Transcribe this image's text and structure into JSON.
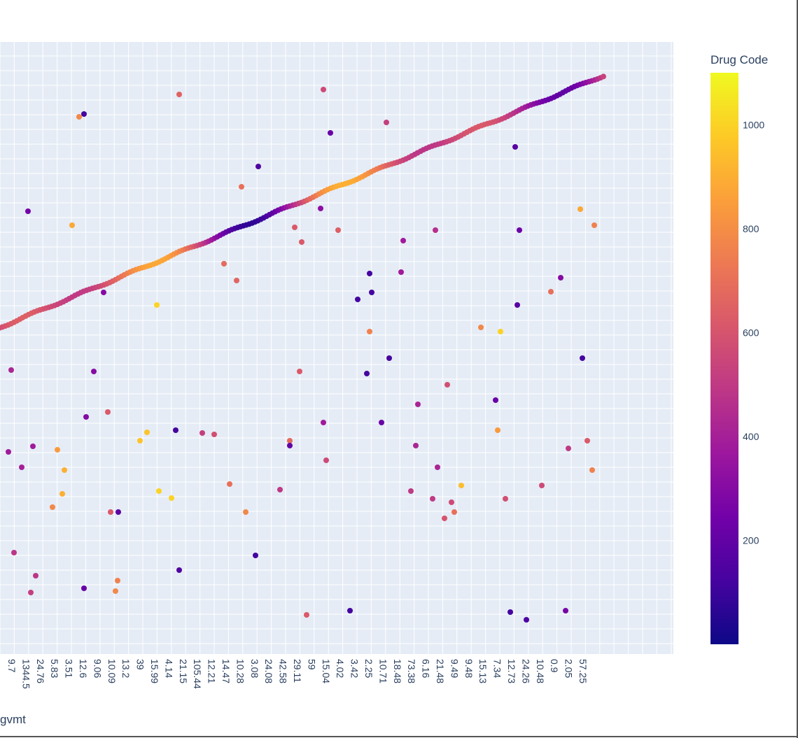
{
  "chart_data": {
    "type": "scatter",
    "title": "",
    "xlabel": "gvmt",
    "ylabel": "",
    "grid": true,
    "x_tick_labels": [
      "9.7",
      "1344.5",
      "24.76",
      "5.83",
      "3.51",
      "12.6",
      "9.06",
      "10.09",
      "13.2",
      "39",
      "15.99",
      "4.14",
      "21.15",
      "105.44",
      "12.21",
      "14.47",
      "10.28",
      "3.08",
      "24.08",
      "42.58",
      "29.11",
      "59",
      "15.04",
      "4.02",
      "3.42",
      "2.25",
      "10.71",
      "18.48",
      "73.38",
      "6.16",
      "21.48",
      "9.49",
      "9.48",
      "15.13",
      "7.34",
      "12.73",
      "24.26",
      "10.48",
      "0.9",
      "2.05",
      "57.25"
    ],
    "colorbar": {
      "title": "Drug Code",
      "range": [
        0,
        1100
      ],
      "ticks": [
        200,
        400,
        600,
        800,
        1000
      ],
      "colorscale": [
        "#0d0887",
        "#46039f",
        "#7201a8",
        "#9c179e",
        "#bd3786",
        "#d8576b",
        "#ed7953",
        "#fb9f3a",
        "#fdca26",
        "#f0f921"
      ]
    },
    "line_series": {
      "x_range": [
        -5,
        862
      ],
      "y_range": [
        470,
        108
      ],
      "count": 210
    },
    "scatter_points": [
      [
        256,
        135,
        650
      ],
      [
        462,
        128,
        560
      ],
      [
        113,
        167,
        780
      ],
      [
        120,
        163,
        120
      ],
      [
        552,
        175,
        520
      ],
      [
        472,
        190,
        220
      ],
      [
        369,
        238,
        150
      ],
      [
        736,
        210,
        170
      ],
      [
        40,
        302,
        250
      ],
      [
        103,
        322,
        880
      ],
      [
        458,
        298,
        320
      ],
      [
        345,
        267,
        700
      ],
      [
        421,
        325,
        620
      ],
      [
        431,
        346,
        620
      ],
      [
        483,
        329,
        640
      ],
      [
        576,
        344,
        380
      ],
      [
        622,
        329,
        460
      ],
      [
        742,
        329,
        230
      ],
      [
        829,
        299,
        880
      ],
      [
        849,
        322,
        760
      ],
      [
        320,
        377,
        680
      ],
      [
        338,
        401,
        660
      ],
      [
        148,
        418,
        300
      ],
      [
        528,
        391,
        120
      ],
      [
        531,
        418,
        120
      ],
      [
        511,
        428,
        120
      ],
      [
        573,
        389,
        380
      ],
      [
        224,
        436,
        1000
      ],
      [
        739,
        436,
        170
      ],
      [
        801,
        397,
        300
      ],
      [
        787,
        417,
        700
      ],
      [
        687,
        468,
        780
      ],
      [
        715,
        474,
        1000
      ],
      [
        528,
        474,
        760
      ],
      [
        16,
        529,
        420
      ],
      [
        134,
        531,
        300
      ],
      [
        428,
        531,
        620
      ],
      [
        524,
        534,
        120
      ],
      [
        556,
        512,
        120
      ],
      [
        832,
        512,
        120
      ],
      [
        639,
        550,
        580
      ],
      [
        123,
        596,
        300
      ],
      [
        154,
        589,
        620
      ],
      [
        597,
        578,
        420
      ],
      [
        708,
        572,
        220
      ],
      [
        545,
        604,
        220
      ],
      [
        462,
        604,
        380
      ],
      [
        47,
        638,
        380
      ],
      [
        12,
        646,
        380
      ],
      [
        82,
        643,
        840
      ],
      [
        31,
        668,
        400
      ],
      [
        200,
        630,
        960
      ],
      [
        210,
        618,
        960
      ],
      [
        251,
        615,
        120
      ],
      [
        289,
        619,
        520
      ],
      [
        306,
        621,
        580
      ],
      [
        414,
        630,
        680
      ],
      [
        414,
        637,
        200
      ],
      [
        466,
        658,
        560
      ],
      [
        594,
        637,
        420
      ],
      [
        625,
        668,
        420
      ],
      [
        711,
        615,
        840
      ],
      [
        812,
        641,
        500
      ],
      [
        839,
        630,
        620
      ],
      [
        846,
        672,
        760
      ],
      [
        92,
        672,
        900
      ],
      [
        89,
        706,
        900
      ],
      [
        75,
        725,
        780
      ],
      [
        227,
        702,
        1000
      ],
      [
        245,
        712,
        1000
      ],
      [
        328,
        692,
        700
      ],
      [
        400,
        700,
        500
      ],
      [
        587,
        702,
        500
      ],
      [
        618,
        713,
        500
      ],
      [
        645,
        718,
        560
      ],
      [
        659,
        694,
        940
      ],
      [
        722,
        713,
        580
      ],
      [
        774,
        694,
        560
      ],
      [
        158,
        732,
        620
      ],
      [
        169,
        732,
        180
      ],
      [
        351,
        732,
        780
      ],
      [
        635,
        741,
        600
      ],
      [
        649,
        732,
        700
      ],
      [
        20,
        790,
        480
      ],
      [
        365,
        794,
        120
      ],
      [
        51,
        823,
        480
      ],
      [
        44,
        847,
        520
      ],
      [
        120,
        841,
        220
      ],
      [
        168,
        830,
        760
      ],
      [
        165,
        845,
        780
      ],
      [
        256,
        815,
        150
      ],
      [
        438,
        879,
        620
      ],
      [
        500,
        873,
        120
      ],
      [
        729,
        875,
        120
      ],
      [
        752,
        886,
        150
      ],
      [
        808,
        873,
        260
      ]
    ]
  }
}
